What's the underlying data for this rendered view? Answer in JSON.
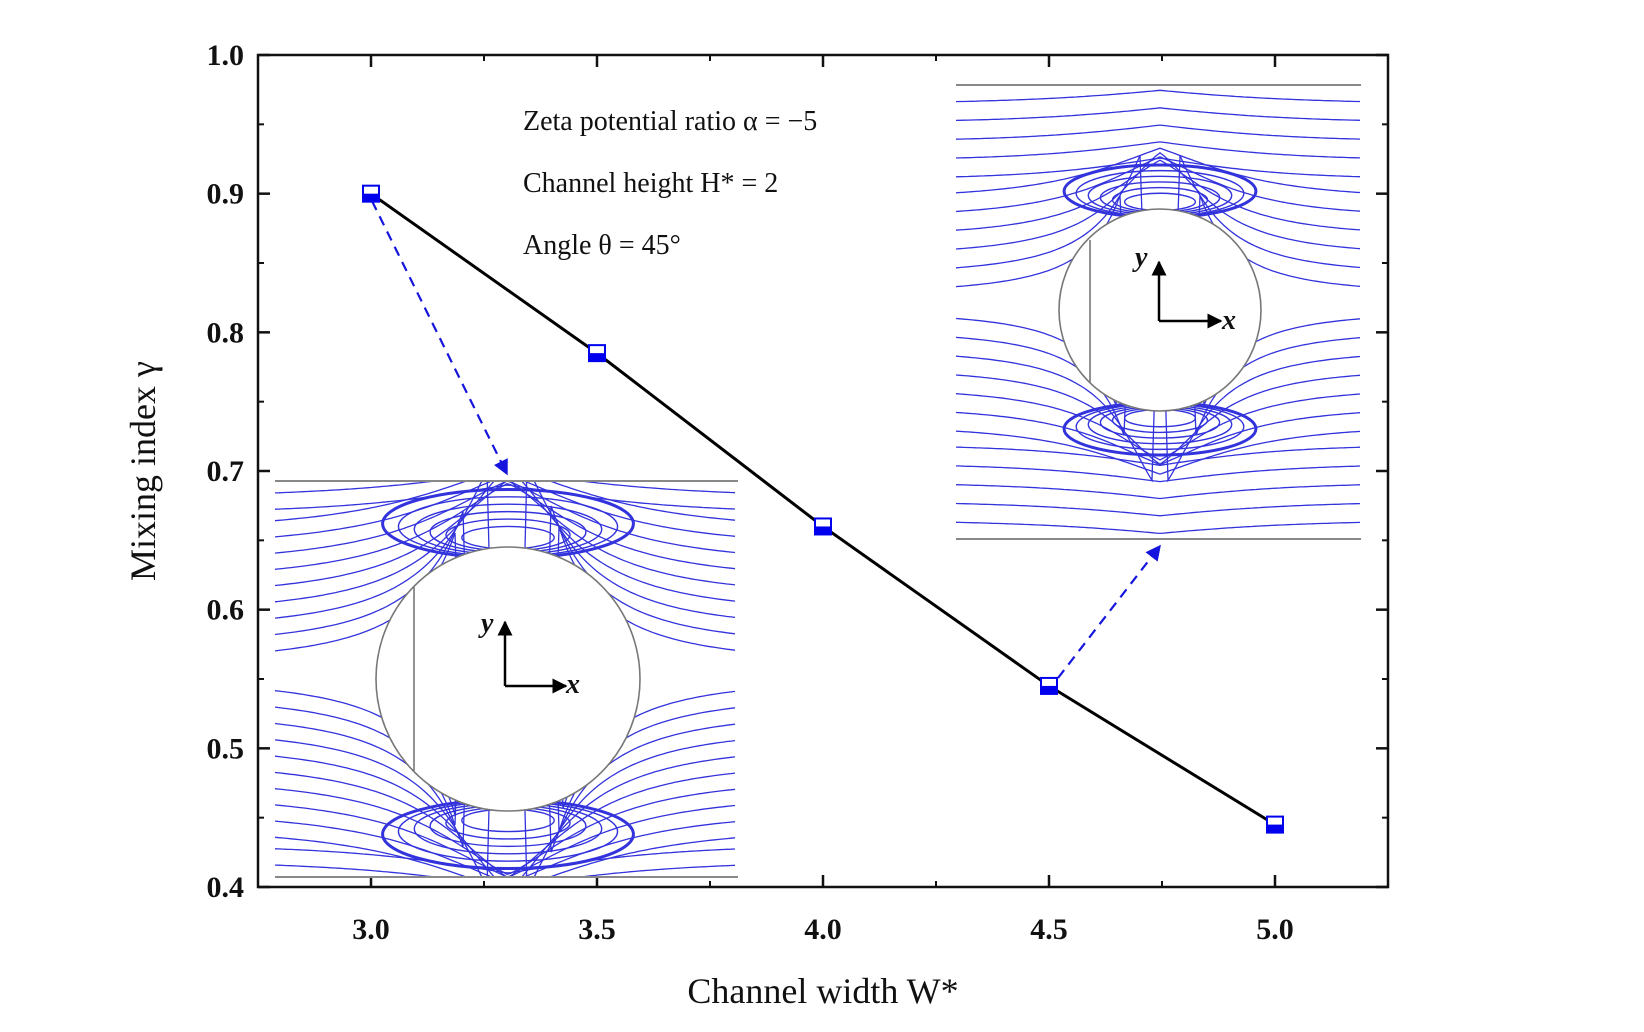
{
  "chart_data": {
    "type": "line",
    "xlabel": "Channel width W*",
    "ylabel": "Mixing index γ",
    "xlim": [
      2.75,
      5.25
    ],
    "ylim": [
      0.4,
      1.0
    ],
    "x_ticks": [
      "3.0",
      "3.5",
      "4.0",
      "4.5",
      "5.0"
    ],
    "y_ticks": [
      "0.4",
      "0.5",
      "0.6",
      "0.7",
      "0.8",
      "0.9",
      "1.0"
    ],
    "grid": false,
    "series": [
      {
        "x": [
          3.0,
          3.5,
          4.0,
          4.5,
          5.0
        ],
        "values": [
          0.9,
          0.785,
          0.66,
          0.545,
          0.445
        ],
        "color": "#000000",
        "marker_color": "#0000ee"
      }
    ],
    "annotations": [
      {
        "id": "alpha",
        "text": "Zeta potential ratio α = −5"
      },
      {
        "id": "height",
        "text": "Channel height H* = 2"
      },
      {
        "id": "angle",
        "text": "Angle θ = 45°"
      }
    ],
    "insets": [
      {
        "points_to": 3.0,
        "axis_x": "x",
        "axis_y": "y",
        "streamline_color": "#3333dd"
      },
      {
        "points_to": 4.5,
        "axis_x": "x",
        "axis_y": "y",
        "streamline_color": "#3333dd"
      }
    ]
  }
}
